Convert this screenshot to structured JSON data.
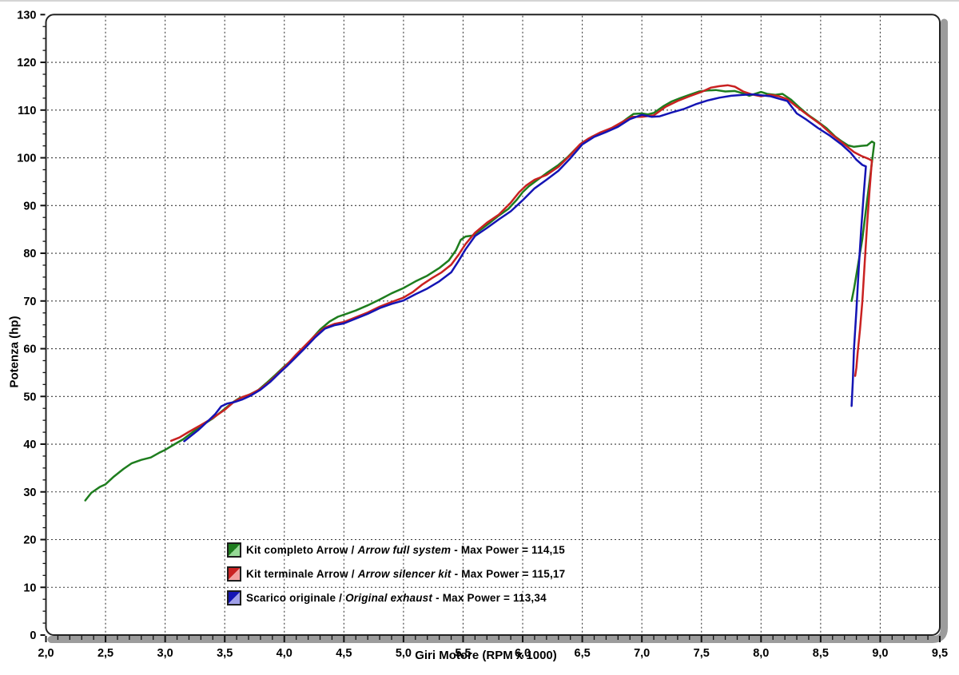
{
  "chart_data": {
    "type": "line",
    "title": "",
    "xlabel": "Giri Motore (RPM x 1000)",
    "ylabel": "Potenza (hp)",
    "grid": "dotted major gridlines, both axes",
    "legend_position": "inside bottom-center",
    "x_axis": {
      "min": 2.0,
      "max": 9.5,
      "major_step": 0.5,
      "minor_step": 0.1,
      "tick_labels": [
        "2,0",
        "2,5",
        "3,0",
        "3,5",
        "4,0",
        "4,5",
        "5,0",
        "5,5",
        "6,0",
        "6,5",
        "7,0",
        "7,5",
        "8,0",
        "8,5",
        "9,0",
        "9,5"
      ]
    },
    "y_axis": {
      "min": 0,
      "max": 130,
      "major_step": 10,
      "minor_step": 2.5,
      "tick_labels": [
        "0",
        "10",
        "20",
        "30",
        "40",
        "50",
        "60",
        "70",
        "80",
        "90",
        "100",
        "110",
        "120",
        "130"
      ]
    },
    "series": [
      {
        "name": "Kit completo Arrow / Arrow full system",
        "max_power": "114,15",
        "color": "#1e7d1e",
        "light_color": "#96d996",
        "points": [
          [
            2.33,
            28.2
          ],
          [
            2.38,
            29.8
          ],
          [
            2.45,
            31.0
          ],
          [
            2.5,
            31.6
          ],
          [
            2.57,
            33.2
          ],
          [
            2.65,
            34.8
          ],
          [
            2.72,
            36.0
          ],
          [
            2.8,
            36.7
          ],
          [
            2.88,
            37.2
          ],
          [
            2.95,
            38.2
          ],
          [
            3.0,
            38.8
          ],
          [
            3.08,
            40.0
          ],
          [
            3.15,
            41.0
          ],
          [
            3.22,
            42.3
          ],
          [
            3.3,
            43.8
          ],
          [
            3.4,
            45.4
          ],
          [
            3.5,
            47.4
          ],
          [
            3.57,
            48.8
          ],
          [
            3.62,
            49.6
          ],
          [
            3.7,
            50.3
          ],
          [
            3.78,
            51.3
          ],
          [
            3.85,
            52.8
          ],
          [
            3.92,
            54.4
          ],
          [
            4.0,
            56.3
          ],
          [
            4.08,
            58.0
          ],
          [
            4.15,
            59.8
          ],
          [
            4.22,
            61.8
          ],
          [
            4.3,
            64.0
          ],
          [
            4.38,
            65.7
          ],
          [
            4.45,
            66.7
          ],
          [
            4.52,
            67.3
          ],
          [
            4.6,
            68.0
          ],
          [
            4.7,
            69.1
          ],
          [
            4.8,
            70.3
          ],
          [
            4.9,
            71.6
          ],
          [
            5.0,
            72.7
          ],
          [
            5.1,
            74.1
          ],
          [
            5.2,
            75.3
          ],
          [
            5.3,
            76.9
          ],
          [
            5.38,
            78.5
          ],
          [
            5.44,
            80.6
          ],
          [
            5.48,
            82.8
          ],
          [
            5.52,
            83.5
          ],
          [
            5.58,
            83.7
          ],
          [
            5.65,
            85.0
          ],
          [
            5.72,
            86.3
          ],
          [
            5.8,
            87.9
          ],
          [
            5.88,
            89.3
          ],
          [
            5.95,
            91.2
          ],
          [
            6.0,
            92.8
          ],
          [
            6.05,
            94.0
          ],
          [
            6.12,
            95.3
          ],
          [
            6.2,
            96.8
          ],
          [
            6.3,
            98.5
          ],
          [
            6.38,
            100.2
          ],
          [
            6.45,
            102.0
          ],
          [
            6.5,
            103.2
          ],
          [
            6.58,
            104.4
          ],
          [
            6.65,
            105.2
          ],
          [
            6.72,
            105.8
          ],
          [
            6.8,
            106.8
          ],
          [
            6.88,
            108.3
          ],
          [
            6.93,
            109.2
          ],
          [
            7.0,
            109.3
          ],
          [
            7.05,
            109.1
          ],
          [
            7.1,
            109.4
          ],
          [
            7.18,
            110.8
          ],
          [
            7.25,
            111.8
          ],
          [
            7.32,
            112.5
          ],
          [
            7.4,
            113.2
          ],
          [
            7.48,
            113.9
          ],
          [
            7.55,
            114.1
          ],
          [
            7.62,
            114.2
          ],
          [
            7.7,
            113.9
          ],
          [
            7.78,
            114.0
          ],
          [
            7.85,
            113.5
          ],
          [
            7.9,
            113.0
          ],
          [
            7.95,
            113.4
          ],
          [
            8.0,
            113.8
          ],
          [
            8.05,
            113.4
          ],
          [
            8.12,
            113.2
          ],
          [
            8.18,
            113.4
          ],
          [
            8.25,
            112.2
          ],
          [
            8.32,
            110.6
          ],
          [
            8.4,
            108.9
          ],
          [
            8.48,
            107.5
          ],
          [
            8.55,
            106.2
          ],
          [
            8.62,
            104.5
          ],
          [
            8.68,
            103.4
          ],
          [
            8.73,
            102.6
          ],
          [
            8.78,
            102.3
          ],
          [
            8.84,
            102.5
          ],
          [
            8.89,
            102.6
          ],
          [
            8.93,
            103.4
          ],
          [
            8.95,
            103.1
          ],
          [
            8.93,
            99.0
          ],
          [
            8.91,
            95.0
          ],
          [
            8.88,
            89.0
          ],
          [
            8.85,
            83.0
          ],
          [
            8.81,
            77.0
          ],
          [
            8.78,
            72.5
          ],
          [
            8.76,
            70.0
          ]
        ]
      },
      {
        "name": "Kit terminale Arrow / Arrow silencer kit",
        "max_power": "115,17",
        "color": "#c92121",
        "light_color": "#f2a0a0",
        "points": [
          [
            3.05,
            40.7
          ],
          [
            3.12,
            41.4
          ],
          [
            3.2,
            42.6
          ],
          [
            3.3,
            44.0
          ],
          [
            3.4,
            45.5
          ],
          [
            3.5,
            47.2
          ],
          [
            3.58,
            48.9
          ],
          [
            3.65,
            49.9
          ],
          [
            3.72,
            50.5
          ],
          [
            3.8,
            51.6
          ],
          [
            3.88,
            53.2
          ],
          [
            3.95,
            54.9
          ],
          [
            4.02,
            56.6
          ],
          [
            4.1,
            58.8
          ],
          [
            4.18,
            60.8
          ],
          [
            4.26,
            62.8
          ],
          [
            4.34,
            64.4
          ],
          [
            4.42,
            65.2
          ],
          [
            4.5,
            65.6
          ],
          [
            4.6,
            66.6
          ],
          [
            4.7,
            67.6
          ],
          [
            4.8,
            68.8
          ],
          [
            4.9,
            69.8
          ],
          [
            5.0,
            70.7
          ],
          [
            5.08,
            71.9
          ],
          [
            5.16,
            73.5
          ],
          [
            5.24,
            74.8
          ],
          [
            5.32,
            76.0
          ],
          [
            5.4,
            77.6
          ],
          [
            5.46,
            79.6
          ],
          [
            5.52,
            81.9
          ],
          [
            5.6,
            84.3
          ],
          [
            5.7,
            86.4
          ],
          [
            5.8,
            88.1
          ],
          [
            5.9,
            90.6
          ],
          [
            5.97,
            92.8
          ],
          [
            6.03,
            94.2
          ],
          [
            6.1,
            95.4
          ],
          [
            6.2,
            96.4
          ],
          [
            6.3,
            98.1
          ],
          [
            6.4,
            100.6
          ],
          [
            6.48,
            102.8
          ],
          [
            6.55,
            104.0
          ],
          [
            6.65,
            105.3
          ],
          [
            6.75,
            106.3
          ],
          [
            6.85,
            107.7
          ],
          [
            6.92,
            108.6
          ],
          [
            7.0,
            108.6
          ],
          [
            7.1,
            108.9
          ],
          [
            7.2,
            110.7
          ],
          [
            7.3,
            111.9
          ],
          [
            7.4,
            112.9
          ],
          [
            7.5,
            113.8
          ],
          [
            7.58,
            114.7
          ],
          [
            7.65,
            115.0
          ],
          [
            7.72,
            115.2
          ],
          [
            7.78,
            114.9
          ],
          [
            7.85,
            113.9
          ],
          [
            7.92,
            113.3
          ],
          [
            8.0,
            112.9
          ],
          [
            8.08,
            113.2
          ],
          [
            8.15,
            112.9
          ],
          [
            8.22,
            112.3
          ],
          [
            8.3,
            110.7
          ],
          [
            8.4,
            108.8
          ],
          [
            8.5,
            107.0
          ],
          [
            8.58,
            105.2
          ],
          [
            8.65,
            103.8
          ],
          [
            8.72,
            102.4
          ],
          [
            8.78,
            101.2
          ],
          [
            8.84,
            100.4
          ],
          [
            8.9,
            99.8
          ],
          [
            8.93,
            99.4
          ],
          [
            8.91,
            93.0
          ],
          [
            8.89,
            86.0
          ],
          [
            8.87,
            78.0
          ],
          [
            8.85,
            70.0
          ],
          [
            8.83,
            64.0
          ],
          [
            8.81,
            59.0
          ],
          [
            8.8,
            56.0
          ],
          [
            8.79,
            54.3
          ]
        ]
      },
      {
        "name": "Scarico originale / Original exhaust",
        "max_power": "113,34",
        "color": "#1414b4",
        "light_color": "#9f9fe8",
        "points": [
          [
            3.16,
            40.6
          ],
          [
            3.22,
            41.8
          ],
          [
            3.28,
            43.0
          ],
          [
            3.35,
            44.6
          ],
          [
            3.42,
            46.3
          ],
          [
            3.47,
            47.9
          ],
          [
            3.52,
            48.5
          ],
          [
            3.58,
            48.8
          ],
          [
            3.65,
            49.4
          ],
          [
            3.72,
            50.2
          ],
          [
            3.8,
            51.4
          ],
          [
            3.88,
            53.0
          ],
          [
            3.95,
            54.7
          ],
          [
            4.02,
            56.3
          ],
          [
            4.1,
            58.3
          ],
          [
            4.18,
            60.3
          ],
          [
            4.26,
            62.4
          ],
          [
            4.34,
            64.2
          ],
          [
            4.42,
            64.9
          ],
          [
            4.5,
            65.3
          ],
          [
            4.6,
            66.3
          ],
          [
            4.7,
            67.3
          ],
          [
            4.8,
            68.5
          ],
          [
            4.9,
            69.4
          ],
          [
            5.0,
            70.1
          ],
          [
            5.1,
            71.4
          ],
          [
            5.2,
            72.6
          ],
          [
            5.3,
            74.1
          ],
          [
            5.4,
            76.0
          ],
          [
            5.46,
            78.3
          ],
          [
            5.52,
            80.8
          ],
          [
            5.6,
            83.6
          ],
          [
            5.7,
            85.3
          ],
          [
            5.8,
            87.1
          ],
          [
            5.9,
            88.8
          ],
          [
            6.0,
            91.1
          ],
          [
            6.1,
            93.6
          ],
          [
            6.2,
            95.4
          ],
          [
            6.3,
            97.3
          ],
          [
            6.4,
            99.9
          ],
          [
            6.5,
            102.8
          ],
          [
            6.6,
            104.4
          ],
          [
            6.7,
            105.4
          ],
          [
            6.8,
            106.5
          ],
          [
            6.9,
            108.1
          ],
          [
            7.0,
            109.0
          ],
          [
            7.08,
            108.6
          ],
          [
            7.15,
            108.7
          ],
          [
            7.25,
            109.5
          ],
          [
            7.35,
            110.2
          ],
          [
            7.45,
            111.2
          ],
          [
            7.55,
            112.0
          ],
          [
            7.65,
            112.6
          ],
          [
            7.75,
            113.0
          ],
          [
            7.85,
            113.2
          ],
          [
            7.93,
            113.3
          ],
          [
            8.0,
            113.1
          ],
          [
            8.08,
            112.9
          ],
          [
            8.15,
            112.4
          ],
          [
            8.22,
            111.9
          ],
          [
            8.3,
            109.3
          ],
          [
            8.38,
            108.0
          ],
          [
            8.48,
            106.2
          ],
          [
            8.58,
            104.6
          ],
          [
            8.68,
            102.7
          ],
          [
            8.75,
            101.1
          ],
          [
            8.8,
            99.6
          ],
          [
            8.85,
            98.5
          ],
          [
            8.88,
            98.2
          ],
          [
            8.86,
            92.0
          ],
          [
            8.84,
            85.0
          ],
          [
            8.82,
            77.0
          ],
          [
            8.8,
            68.0
          ],
          [
            8.78,
            60.0
          ],
          [
            8.77,
            53.0
          ],
          [
            8.76,
            48.0
          ]
        ]
      }
    ]
  },
  "legend": {
    "items": [
      {
        "label_it": "Kit completo Arrow /",
        "label_en": "Arrow full system",
        "max_label": "- Max Power = 114,15"
      },
      {
        "label_it": "Kit terminale Arrow /",
        "label_en": "Arrow silencer kit",
        "max_label": "- Max Power = 115,17"
      },
      {
        "label_it": "Scarico originale /",
        "label_en": "Original exhaust",
        "max_label": "- Max Power = 113,34"
      }
    ]
  },
  "style": {
    "frame_color": "#222222",
    "shadow_color": "#9c9c9c",
    "grid_color": "#3a3a3a",
    "text_color": "#000000"
  }
}
